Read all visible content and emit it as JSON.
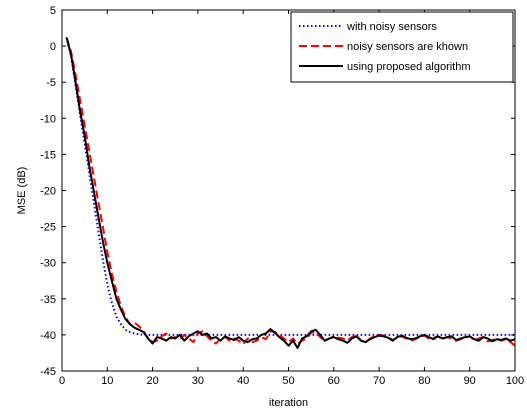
{
  "chart_data": {
    "type": "line",
    "title": "",
    "xlabel": "iteration",
    "ylabel": "MSE (dB)",
    "xlim": [
      0,
      100
    ],
    "ylim": [
      -45,
      5
    ],
    "xticks": [
      0,
      10,
      20,
      30,
      40,
      50,
      60,
      70,
      80,
      90,
      100
    ],
    "yticks": [
      5,
      0,
      -5,
      -10,
      -15,
      -20,
      -25,
      -30,
      -35,
      -40,
      -45
    ],
    "grid": false,
    "legend_position": "top-right",
    "series": [
      {
        "name": "with noisy sensors",
        "color": "#0000ff",
        "style": "dotted",
        "x": [
          1,
          2,
          3,
          4,
          5,
          6,
          7,
          8,
          9,
          10,
          11,
          12,
          13,
          14,
          15,
          16,
          17,
          18,
          20,
          25,
          30,
          35,
          40,
          45,
          50,
          55,
          60,
          65,
          70,
          75,
          80,
          85,
          90,
          95,
          100
        ],
        "y": [
          1.2,
          -1.5,
          -5.5,
          -9.5,
          -13.5,
          -17.5,
          -21.5,
          -25.5,
          -29.5,
          -33,
          -35.5,
          -37.5,
          -38.5,
          -39.3,
          -39.6,
          -39.8,
          -39.9,
          -40,
          -40,
          -40,
          -40,
          -40,
          -40,
          -40,
          -40,
          -40,
          -40,
          -40,
          -40,
          -40,
          -40,
          -40,
          -40,
          -40,
          -40
        ]
      },
      {
        "name": "noisy sensors are khown",
        "color": "#ff0000",
        "style": "dashed",
        "x": [
          1,
          2,
          3,
          4,
          5,
          6,
          7,
          8,
          9,
          10,
          11,
          12,
          13,
          14,
          15,
          16,
          17,
          18,
          19,
          20,
          21,
          22,
          23,
          24,
          25,
          26,
          27,
          28,
          29,
          30,
          31,
          32,
          33,
          34,
          35,
          36,
          37,
          38,
          39,
          40,
          41,
          42,
          43,
          44,
          45,
          46,
          47,
          48,
          49,
          50,
          51,
          52,
          53,
          54,
          55,
          56,
          57,
          58,
          59,
          60,
          61,
          62,
          63,
          64,
          65,
          66,
          67,
          68,
          69,
          70,
          71,
          72,
          73,
          74,
          75,
          76,
          77,
          78,
          79,
          80,
          81,
          82,
          83,
          84,
          85,
          86,
          87,
          88,
          89,
          90,
          91,
          92,
          93,
          94,
          95,
          96,
          97,
          98,
          99,
          100
        ],
        "y": [
          1.2,
          -0.8,
          -4,
          -7.5,
          -11,
          -14.5,
          -18,
          -21.5,
          -25,
          -28.5,
          -31.5,
          -34,
          -36,
          -37.5,
          -38.5,
          -38.3,
          -38.8,
          -39.5,
          -40.5,
          -41,
          -40.8,
          -40.2,
          -39.8,
          -40.5,
          -40.3,
          -40.6,
          -40,
          -40.5,
          -41,
          -39.8,
          -39.5,
          -40.2,
          -40.8,
          -41.2,
          -40.5,
          -40.3,
          -40.8,
          -40.5,
          -40.8,
          -41.3,
          -40.5,
          -41,
          -40.8,
          -40.3,
          -40.6,
          -39.5,
          -39.6,
          -40,
          -40.5,
          -41,
          -40.5,
          -41.2,
          -40.8,
          -40.5,
          -39.7,
          -39.6,
          -40.3,
          -40.8,
          -40.5,
          -40.2,
          -40.4,
          -40.5,
          -40.8,
          -40.3,
          -40,
          -40.8,
          -41,
          -40.5,
          -40.2,
          -40,
          -40.1,
          -40.3,
          -40.7,
          -40.4,
          -40.2,
          -40.5,
          -40.8,
          -40.6,
          -40.3,
          -40.1,
          -40.5,
          -40.4,
          -40.2,
          -40.6,
          -40.3,
          -40.5,
          -40.8,
          -40.6,
          -40.4,
          -40.2,
          -40.7,
          -40.5,
          -40.3,
          -40.9,
          -40.7,
          -40.5,
          -40.8,
          -40.6,
          -41,
          -41.5
        ]
      },
      {
        "name": "using proposed algorithm",
        "color": "#000000",
        "style": "solid",
        "x": [
          1,
          2,
          3,
          4,
          5,
          6,
          7,
          8,
          9,
          10,
          11,
          12,
          13,
          14,
          15,
          16,
          17,
          18,
          19,
          20,
          21,
          22,
          23,
          24,
          25,
          26,
          27,
          28,
          29,
          30,
          31,
          32,
          33,
          34,
          35,
          36,
          37,
          38,
          39,
          40,
          41,
          42,
          43,
          44,
          45,
          46,
          47,
          48,
          49,
          50,
          51,
          52,
          53,
          54,
          55,
          56,
          57,
          58,
          59,
          60,
          61,
          62,
          63,
          64,
          65,
          66,
          67,
          68,
          69,
          70,
          71,
          72,
          73,
          74,
          75,
          76,
          77,
          78,
          79,
          80,
          81,
          82,
          83,
          84,
          85,
          86,
          87,
          88,
          89,
          90,
          91,
          92,
          93,
          94,
          95,
          96,
          97,
          98,
          99,
          100
        ],
        "y": [
          1.2,
          -1.2,
          -5,
          -9,
          -12.5,
          -16.5,
          -20,
          -23.5,
          -27,
          -30,
          -32.5,
          -35,
          -36.5,
          -37.8,
          -38.5,
          -39,
          -39.3,
          -39.6,
          -40.5,
          -41.2,
          -40.3,
          -40.5,
          -40.8,
          -40.3,
          -40.5,
          -40,
          -40.8,
          -40.2,
          -39.8,
          -39.5,
          -40,
          -39.8,
          -40.5,
          -40.3,
          -40.8,
          -40.2,
          -40.5,
          -40.7,
          -40.3,
          -40.8,
          -41,
          -40.6,
          -40.5,
          -40,
          -39.8,
          -39.2,
          -39.7,
          -40.3,
          -40.8,
          -41.5,
          -40.8,
          -41.8,
          -40.5,
          -40.2,
          -39.5,
          -39.3,
          -40,
          -40.8,
          -40.5,
          -40.3,
          -40.6,
          -40.8,
          -41.1,
          -40.5,
          -40.2,
          -40.8,
          -41,
          -40.6,
          -40.3,
          -40.1,
          -40.2,
          -40.4,
          -40.8,
          -40.3,
          -40.1,
          -40.4,
          -40.6,
          -40.5,
          -40.2,
          -40,
          -40.3,
          -40.6,
          -40.2,
          -40.5,
          -40.3,
          -40.2,
          -40.7,
          -40.5,
          -40.3,
          -40.2,
          -40.6,
          -40.8,
          -40.3,
          -40.5,
          -40.9,
          -40.6,
          -40.7,
          -40.5,
          -40.8,
          -40.6
        ]
      }
    ]
  }
}
